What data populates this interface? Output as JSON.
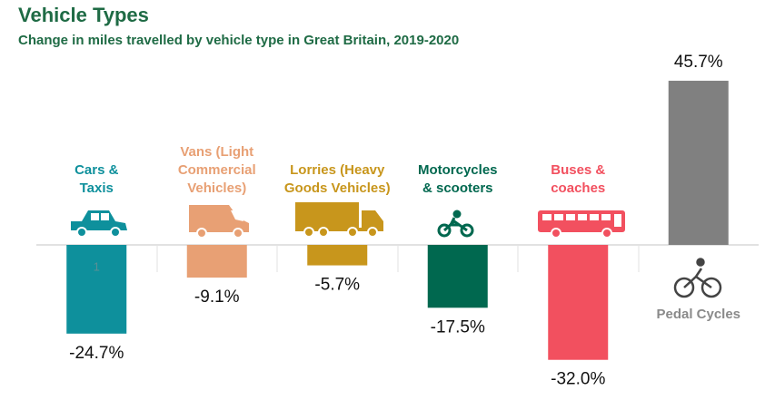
{
  "chart_data": {
    "type": "bar",
    "title": "Vehicle Types",
    "subtitle": "Change in miles travelled by vehicle type in Great Britain, 2019-2020",
    "categories": [
      "Cars &\nTaxis",
      "Vans (Light\nCommercial\nVehicles)",
      "Lorries (Heavy\nGoods Vehicles)",
      "Motorcycles\n& scooters",
      "Buses &\ncoaches",
      "Pedal Cycles"
    ],
    "values": [
      -24.7,
      -9.1,
      -5.7,
      -17.5,
      -32.0,
      45.7
    ],
    "value_labels": [
      "-24.7%",
      "-9.1%",
      "-5.7%",
      "-17.5%",
      "-32.0%",
      "45.7%"
    ],
    "colors": [
      "#0e909c",
      "#e8a074",
      "#c8961c",
      "#00684f",
      "#f2505f",
      "#808080"
    ],
    "label_colors": [
      "#0e909c",
      "#e8a074",
      "#c8961c",
      "#00684f",
      "#f2505f",
      "#8a8a8a"
    ],
    "annotation": "1",
    "ylim": [
      -40,
      50
    ]
  }
}
